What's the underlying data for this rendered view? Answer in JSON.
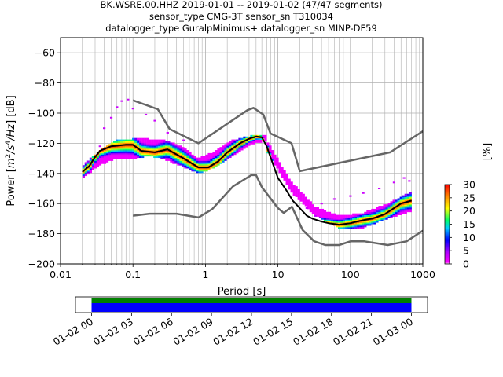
{
  "chart_data": [
    {
      "type": "heatmap",
      "title_lines": [
        "BK.WSRE.00.HHZ   2019-01-01 -- 2019-01-02  (47/47 segments)",
        "sensor_type CMG-3T sensor_sn T310034",
        "datalogger_type GuralpMinimus+ datalogger_sn MINP-DF59"
      ],
      "xlabel": "Period [s]",
      "ylabel_parts": [
        "Power [",
        "m",
        "2",
        "/s",
        "4",
        "/Hz",
        "] [dB]"
      ],
      "x_scale": "log",
      "xlim": [
        0.01,
        1000
      ],
      "ylim": [
        -200,
        -50
      ],
      "x_ticks": [
        0.01,
        0.1,
        1,
        10,
        100,
        1000
      ],
      "x_tick_labels": [
        "0.01",
        "0.1",
        "1",
        "10",
        "100",
        "1000"
      ],
      "y_ticks": [
        -200,
        -180,
        -160,
        -140,
        -120,
        -100,
        -80,
        -60
      ],
      "y_tick_labels": [
        "−200",
        "−180",
        "−160",
        "−140",
        "−120",
        "−100",
        "−80",
        "−60"
      ],
      "grid": true,
      "colorbar": {
        "label": "[%]",
        "range": [
          0,
          30
        ],
        "ticks": [
          0,
          5,
          10,
          15,
          20,
          25,
          30
        ],
        "tick_labels": [
          "0",
          "5",
          "10",
          "15",
          "20",
          "25",
          "30"
        ]
      },
      "series": [
        {
          "role": "noise-model-high",
          "color": "#666666",
          "x": [
            0.1,
            0.22,
            0.32,
            0.8,
            3.8,
            4.6,
            6.3,
            7.9,
            15.4,
            20,
            354.8,
            1000
          ],
          "y": [
            -91.5,
            -97.4,
            -110.5,
            -120,
            -98,
            -96.5,
            -101,
            -113.5,
            -120,
            -138.5,
            -126,
            -112
          ]
        },
        {
          "role": "noise-model-low",
          "color": "#666666",
          "x": [
            0.1,
            0.17,
            0.4,
            0.8,
            1.24,
            2.4,
            4.3,
            5,
            6,
            10,
            12,
            15.6,
            21.9,
            31.6,
            45,
            70,
            101,
            154,
            328,
            600,
            1000
          ],
          "y": [
            -168,
            -166.7,
            -166.7,
            -169.2,
            -163.7,
            -148.6,
            -141.1,
            -141.1,
            -149,
            -163,
            -166.2,
            -162.1,
            -177.5,
            -185,
            -187.5,
            -187.5,
            -185,
            -185,
            -187.5,
            -185,
            -178
          ]
        },
        {
          "role": "mode",
          "color": "#000000",
          "x": [
            0.02,
            0.025,
            0.03,
            0.035,
            0.05,
            0.08,
            0.1,
            0.13,
            0.2,
            0.3,
            0.5,
            0.8,
            1.1,
            1.5,
            2,
            3,
            4,
            5,
            6,
            7,
            8,
            10,
            13,
            16,
            20,
            25,
            30,
            40,
            50,
            70,
            100,
            150,
            200,
            300,
            500,
            700
          ],
          "y": [
            -139,
            -135,
            -129,
            -125,
            -122,
            -121,
            -121,
            -125,
            -126,
            -124,
            -130,
            -136,
            -136,
            -132,
            -126,
            -120,
            -117,
            -115.5,
            -116,
            -122,
            -130,
            -143,
            -151,
            -158,
            -163,
            -168,
            -170,
            -172,
            -173,
            -174,
            -173,
            -171,
            -170,
            -167,
            -160,
            -158
          ]
        }
      ],
      "heatmap_bands": [
        {
          "x": [
            0.02,
            0.8
          ],
          "y_min": [
            -143,
            -135,
            -130,
            -131,
            -128,
            -131,
            -135,
            -140
          ],
          "y_max": [
            -135,
            -125,
            -118,
            -117,
            -117,
            -118,
            -122,
            -130
          ]
        },
        {
          "x": [
            0.8,
            7
          ],
          "y_min": [
            -140,
            -136,
            -128,
            -121,
            -118
          ],
          "y_max": [
            -130,
            -125,
            -118,
            -115,
            -115
          ]
        },
        {
          "x": [
            7,
            700
          ],
          "y_min": [
            -125,
            -152,
            -168,
            -176,
            -176,
            -170,
            -165
          ],
          "y_max": [
            -118,
            -145,
            -162,
            -168,
            -166,
            -160,
            -152
          ]
        }
      ],
      "scatter_outliers": [
        {
          "x": 0.035,
          "y": -122
        },
        {
          "x": 0.04,
          "y": -110
        },
        {
          "x": 0.05,
          "y": -103
        },
        {
          "x": 0.06,
          "y": -96
        },
        {
          "x": 0.07,
          "y": -92
        },
        {
          "x": 0.085,
          "y": -91
        },
        {
          "x": 0.1,
          "y": -97
        },
        {
          "x": 0.15,
          "y": -101
        },
        {
          "x": 0.2,
          "y": -105
        },
        {
          "x": 0.3,
          "y": -113
        },
        {
          "x": 0.5,
          "y": -118
        },
        {
          "x": 25,
          "y": -163
        },
        {
          "x": 40,
          "y": -160
        },
        {
          "x": 60,
          "y": -157
        },
        {
          "x": 100,
          "y": -155
        },
        {
          "x": 150,
          "y": -153
        },
        {
          "x": 250,
          "y": -150
        },
        {
          "x": 400,
          "y": -146
        },
        {
          "x": 550,
          "y": -143
        },
        {
          "x": 650,
          "y": -145
        }
      ]
    },
    {
      "type": "bar",
      "role": "data-coverage",
      "xlim": [
        "2019-01-02 00:00",
        "2019-01-03 00:00"
      ],
      "x_ticks": [
        "01-02 00",
        "01-02 03",
        "01-02 06",
        "01-02 09",
        "01-02 12",
        "01-02 15",
        "01-02 18",
        "01-02 21",
        "01-03 00"
      ],
      "colors": {
        "data": "#0000ff",
        "used": "#008000"
      }
    }
  ]
}
